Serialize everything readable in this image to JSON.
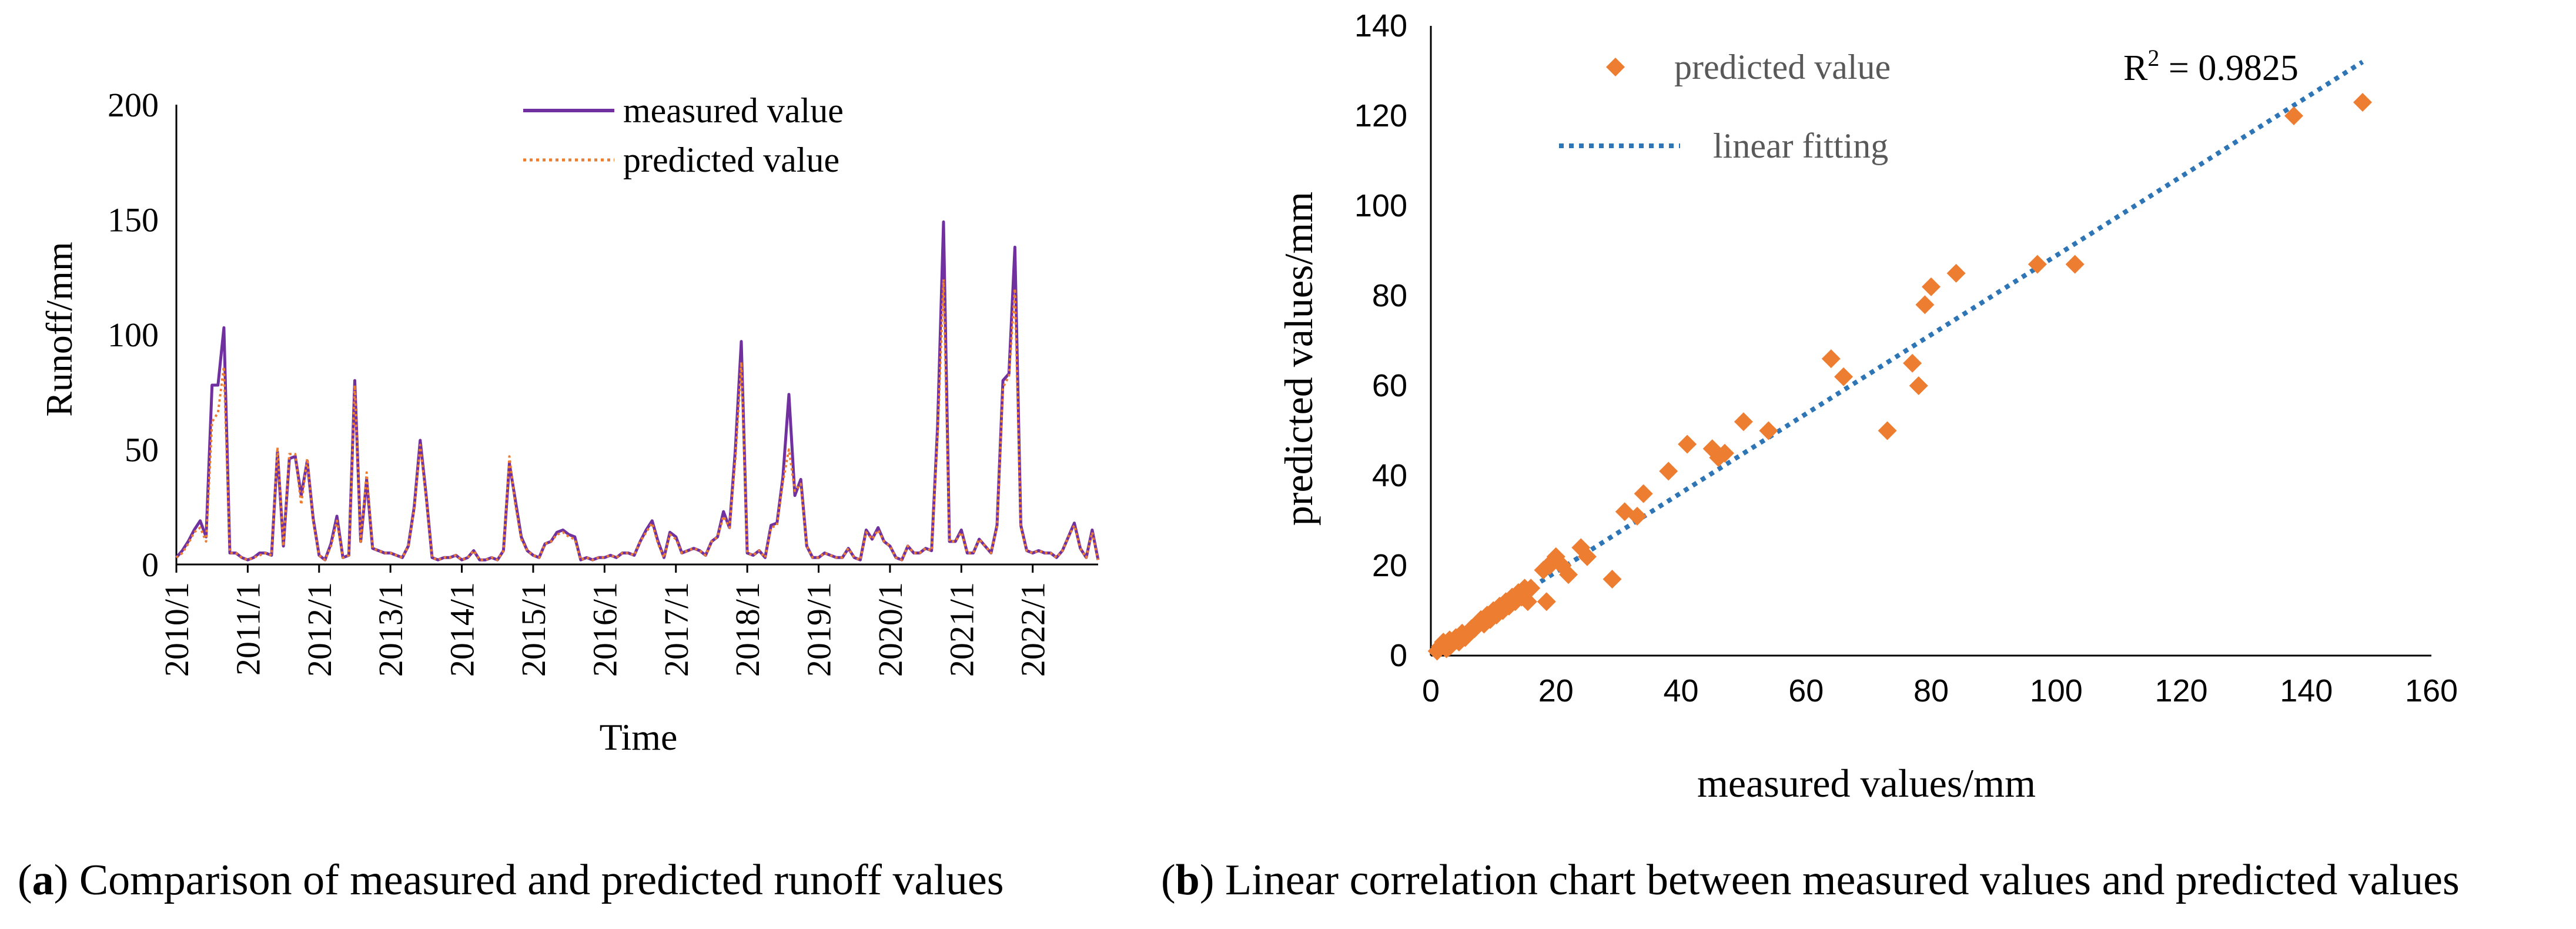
{
  "chart_data": [
    {
      "type": "line",
      "panel": "a",
      "title": "",
      "xlabel": "Time",
      "ylabel": "Runoff/mm",
      "ylim": [
        0,
        200
      ],
      "yticks": [
        "0",
        "50",
        "100",
        "150",
        "200"
      ],
      "xticks": [
        "2010/1",
        "2011/1",
        "2012/1",
        "2013/1",
        "2014/1",
        "2015/1",
        "2016/1",
        "2017/1",
        "2018/1",
        "2019/1",
        "2020/1",
        "2021/1",
        "2022/1"
      ],
      "x_start": "2010/1",
      "x_step": "month",
      "legend_position": "top-center",
      "series": [
        {
          "name": "measured  value",
          "color": "#7030a0",
          "style": "solid",
          "values": [
            3,
            6,
            10,
            15,
            19,
            12,
            78,
            78,
            103,
            5,
            5,
            3,
            2,
            3,
            5,
            5,
            4,
            49,
            8,
            46,
            47,
            30,
            45,
            20,
            4,
            2,
            9,
            21,
            3,
            4,
            80,
            10,
            37,
            7,
            6,
            5,
            5,
            4,
            3,
            8,
            25,
            54,
            30,
            3,
            2,
            3,
            3,
            4,
            2,
            3,
            6,
            2,
            2,
            3,
            2,
            6,
            44,
            28,
            12,
            6,
            4,
            3,
            9,
            10,
            14,
            15,
            13,
            12,
            2,
            3,
            2,
            3,
            3,
            4,
            3,
            5,
            5,
            4,
            10,
            15,
            19,
            10,
            3,
            14,
            12,
            5,
            6,
            7,
            6,
            4,
            10,
            12,
            23,
            16,
            50,
            97,
            5,
            4,
            6,
            3,
            17,
            18,
            38,
            74,
            30,
            37,
            8,
            3,
            3,
            5,
            4,
            3,
            3,
            7,
            3,
            2,
            15,
            11,
            16,
            10,
            8,
            3,
            2,
            8,
            5,
            5,
            7,
            6,
            60,
            149,
            10,
            10,
            15,
            5,
            5,
            11,
            8,
            5,
            17,
            80,
            83,
            138,
            17,
            6,
            5,
            6,
            5,
            5,
            3,
            6,
            12,
            18,
            7,
            3,
            15,
            2
          ]
        },
        {
          "name": "predicted value",
          "color": "#ed7d31",
          "style": "dotted",
          "values": [
            3,
            5,
            9,
            14,
            16,
            10,
            62,
            66,
            86,
            5,
            5,
            3,
            2,
            3,
            4,
            5,
            4,
            51,
            8,
            48,
            48,
            26,
            46,
            19,
            4,
            2,
            8,
            19,
            3,
            4,
            78,
            10,
            40,
            7,
            6,
            5,
            5,
            4,
            3,
            8,
            24,
            52,
            29,
            3,
            2,
            3,
            3,
            4,
            2,
            3,
            6,
            2,
            2,
            3,
            2,
            6,
            47,
            26,
            11,
            6,
            4,
            3,
            9,
            10,
            13,
            14,
            12,
            11,
            2,
            3,
            2,
            3,
            3,
            4,
            3,
            5,
            5,
            4,
            10,
            14,
            18,
            9,
            3,
            13,
            11,
            5,
            6,
            7,
            6,
            4,
            10,
            12,
            21,
            16,
            46,
            88,
            5,
            4,
            6,
            3,
            16,
            17,
            36,
            50,
            32,
            35,
            8,
            3,
            3,
            5,
            4,
            3,
            3,
            7,
            3,
            2,
            14,
            11,
            15,
            10,
            8,
            3,
            2,
            8,
            5,
            5,
            7,
            6,
            56,
            124,
            10,
            10,
            14,
            5,
            5,
            11,
            8,
            5,
            16,
            77,
            82,
            120,
            16,
            6,
            5,
            6,
            5,
            5,
            3,
            6,
            12,
            17,
            7,
            3,
            14,
            2
          ]
        }
      ]
    },
    {
      "type": "scatter",
      "panel": "b",
      "title": "",
      "xlabel": "measured values/mm",
      "ylabel": "predicted  values/mm",
      "xlim": [
        0,
        160
      ],
      "ylim": [
        0,
        140
      ],
      "xticks": [
        "0",
        "20",
        "40",
        "60",
        "80",
        "100",
        "120",
        "140",
        "160"
      ],
      "yticks": [
        "0",
        "20",
        "40",
        "60",
        "80",
        "100",
        "120",
        "140"
      ],
      "legend_position": "top-left",
      "series": [
        {
          "name": "predicted value",
          "color": "#ed7d31",
          "marker": "diamond",
          "points": [
            [
              1,
              1
            ],
            [
              1.5,
              2
            ],
            [
              2,
              3
            ],
            [
              2.5,
              1.5
            ],
            [
              3,
              2
            ],
            [
              3,
              3.5
            ],
            [
              4,
              4
            ],
            [
              4.5,
              3
            ],
            [
              5,
              5
            ],
            [
              5.5,
              4
            ],
            [
              6,
              5
            ],
            [
              6.5,
              6
            ],
            [
              7,
              6
            ],
            [
              7.5,
              7
            ],
            [
              8,
              8
            ],
            [
              8.5,
              7
            ],
            [
              9,
              9
            ],
            [
              9.5,
              8
            ],
            [
              10,
              10
            ],
            [
              10.5,
              9
            ],
            [
              11,
              11
            ],
            [
              11.5,
              10
            ],
            [
              12,
              12
            ],
            [
              12.5,
              11
            ],
            [
              13,
              13
            ],
            [
              13.5,
              12
            ],
            [
              14,
              14
            ],
            [
              14.5,
              13
            ],
            [
              15,
              15
            ],
            [
              15.5,
              12
            ],
            [
              16,
              15
            ],
            [
              18,
              19
            ],
            [
              18.5,
              12
            ],
            [
              19,
              20
            ],
            [
              19.5,
              21
            ],
            [
              20,
              22
            ],
            [
              21,
              20
            ],
            [
              22,
              18
            ],
            [
              24,
              24
            ],
            [
              25,
              22
            ],
            [
              29,
              17
            ],
            [
              31,
              32
            ],
            [
              33,
              31
            ],
            [
              34,
              36
            ],
            [
              38,
              41
            ],
            [
              41,
              47
            ],
            [
              45,
              46
            ],
            [
              46,
              44
            ],
            [
              47,
              45
            ],
            [
              50,
              52
            ],
            [
              54,
              50
            ],
            [
              64,
              66
            ],
            [
              66,
              62
            ],
            [
              73,
              50
            ],
            [
              77,
              65
            ],
            [
              78,
              60
            ],
            [
              79,
              78
            ],
            [
              80,
              82
            ],
            [
              84,
              85
            ],
            [
              97,
              87
            ],
            [
              103,
              87
            ],
            [
              138,
              120
            ],
            [
              149,
              123
            ]
          ]
        },
        {
          "name": "linear fitting",
          "color": "#2e75b6",
          "style": "dotted",
          "x_range": [
            0,
            149
          ],
          "y_range": [
            1,
            132
          ]
        }
      ],
      "annotation": {
        "text_prefix": "R",
        "text_sup": "2",
        "text_value": " = 0.9825"
      }
    }
  ],
  "captions": {
    "a_label": "a",
    "a_text": " Comparison of measured and predicted runoff values",
    "b_label": "b",
    "b_text": " Linear correlation chart between measured values and predicted values"
  }
}
